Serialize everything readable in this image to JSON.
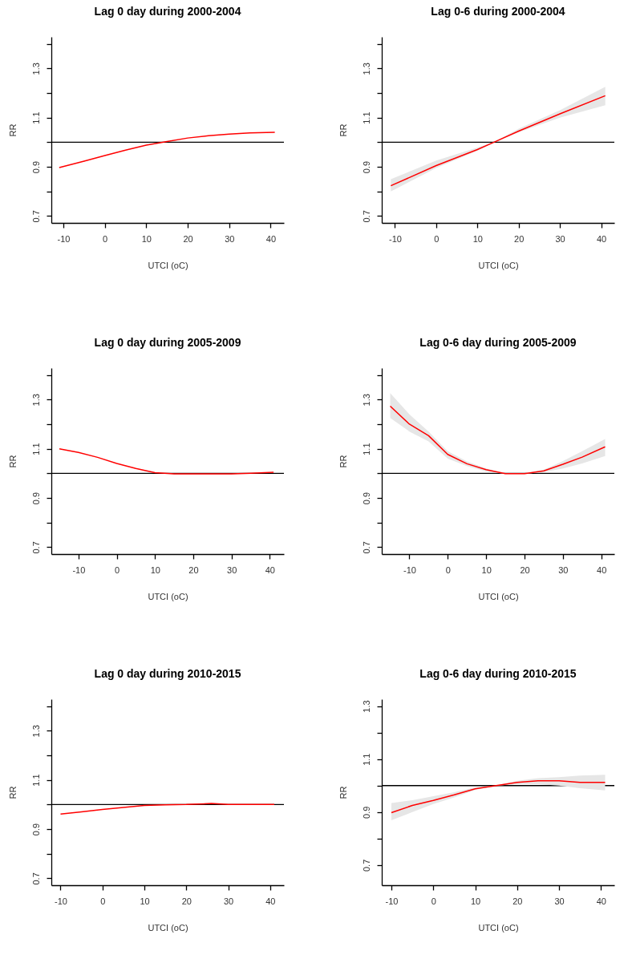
{
  "chart_data": [
    {
      "type": "line",
      "title": "Lag 0 day during 2000-2004",
      "xlabel": "UTCI (oC)",
      "ylabel": "RR",
      "xlim": [
        -12.9,
        43.2
      ],
      "xticks": [
        -10,
        0,
        10,
        20,
        30,
        40
      ],
      "ylim": [
        0.672,
        1.428
      ],
      "yticks": [
        0.7,
        {
          "value": 0.8,
          "label": null
        },
        0.9,
        {
          "value": 1.0,
          "label": null
        },
        1.1,
        {
          "value": 1.2,
          "label": null
        },
        1.3,
        {
          "value": 1.4,
          "label": null
        }
      ],
      "ref_lines": [
        {
          "axis": "y",
          "value": 1,
          "color": "#000000"
        }
      ],
      "series": [
        {
          "color": "#ff0000",
          "x": [
            -11,
            -5,
            0,
            5,
            10,
            15,
            20,
            25,
            30,
            35,
            41
          ],
          "values": [
            0.897,
            0.923,
            0.946,
            0.968,
            0.988,
            1.003,
            1.017,
            1.026,
            1.033,
            1.038,
            1.04
          ]
        }
      ]
    },
    {
      "type": "line",
      "title": "Lag 0-6 during 2000-2004",
      "xlabel": "UTCI (oC)",
      "ylabel": "RR",
      "xlim": [
        -13.2,
        43.2
      ],
      "xticks": [
        -10,
        0,
        10,
        20,
        30,
        40
      ],
      "ylim": [
        0.672,
        1.428
      ],
      "yticks": [
        0.7,
        {
          "value": 0.8,
          "label": null
        },
        0.9,
        {
          "value": 1.0,
          "label": null
        },
        1.1,
        {
          "value": 1.2,
          "label": null
        },
        1.3,
        {
          "value": 1.4,
          "label": null
        }
      ],
      "ref_lines": [
        {
          "axis": "y",
          "value": 1,
          "color": "#000000"
        }
      ],
      "series": [
        {
          "color": "#ff0000",
          "x": [
            -11,
            0,
            10,
            14,
            20,
            30,
            41
          ],
          "values": [
            0.823,
            0.905,
            0.97,
            1.0,
            1.045,
            1.115,
            1.189
          ],
          "lower": [
            0.8,
            0.895,
            0.965,
            1.0,
            1.04,
            1.1,
            1.15
          ],
          "upper": [
            0.85,
            0.925,
            0.978,
            1.0,
            1.055,
            1.13,
            1.225
          ]
        }
      ]
    },
    {
      "type": "line",
      "title": "Lag 0 day during 2005-2009",
      "xlabel": "UTCI (oC)",
      "ylabel": "RR",
      "xlim": [
        -17.1,
        43.7
      ],
      "xticks": [
        -10,
        0,
        10,
        20,
        30,
        40
      ],
      "ylim": [
        0.672,
        1.428
      ],
      "yticks": [
        0.7,
        {
          "value": 0.8,
          "label": null
        },
        0.9,
        {
          "value": 1.0,
          "label": null
        },
        1.1,
        {
          "value": 1.2,
          "label": null
        },
        1.3,
        {
          "value": 1.4,
          "label": null
        }
      ],
      "ref_lines": [
        {
          "axis": "y",
          "value": 1,
          "color": "#000000"
        }
      ],
      "series": [
        {
          "color": "#ff0000",
          "x": [
            -15,
            -10,
            -5,
            0,
            5,
            10,
            15,
            20,
            30,
            35,
            41
          ],
          "values": [
            1.1,
            1.085,
            1.065,
            1.04,
            1.02,
            1.003,
            0.998,
            0.998,
            0.998,
            1.0,
            1.004
          ]
        }
      ]
    },
    {
      "type": "line",
      "title": "Lag 0-6 day during 2005-2009",
      "xlabel": "UTCI (oC)",
      "ylabel": "RR",
      "xlim": [
        -17.2,
        43.4
      ],
      "xticks": [
        -10,
        0,
        10,
        20,
        30,
        40
      ],
      "ylim": [
        0.672,
        1.428
      ],
      "yticks": [
        0.7,
        {
          "value": 0.8,
          "label": null
        },
        0.9,
        {
          "value": 1.0,
          "label": null
        },
        1.1,
        {
          "value": 1.2,
          "label": null
        },
        1.3,
        {
          "value": 1.4,
          "label": null
        }
      ],
      "ref_lines": [
        {
          "axis": "y",
          "value": 1,
          "color": "#000000"
        }
      ],
      "series": [
        {
          "color": "#ff0000",
          "x": [
            -15,
            -10,
            -5,
            0,
            5,
            10,
            15,
            20,
            25,
            30,
            35,
            41
          ],
          "values": [
            1.273,
            1.2,
            1.153,
            1.077,
            1.039,
            1.015,
            0.999,
            0.999,
            1.01,
            1.037,
            1.066,
            1.108
          ],
          "lower": [
            1.225,
            1.17,
            1.13,
            1.06,
            1.03,
            1.008,
            0.998,
            0.998,
            1.005,
            1.02,
            1.04,
            1.07
          ],
          "upper": [
            1.326,
            1.24,
            1.17,
            1.09,
            1.048,
            1.02,
            1.0,
            1.0,
            1.015,
            1.05,
            1.09,
            1.14
          ]
        }
      ]
    },
    {
      "type": "line",
      "title": "Lag 0 day during 2010-2015",
      "xlabel": "UTCI (oC)",
      "ylabel": "RR",
      "xlim": [
        -12.2,
        43.3
      ],
      "xticks": [
        -10,
        0,
        10,
        20,
        30,
        40
      ],
      "ylim": [
        0.672,
        1.428
      ],
      "yticks": [
        0.7,
        {
          "value": 0.8,
          "label": null
        },
        0.9,
        {
          "value": 1.0,
          "label": null
        },
        1.1,
        {
          "value": 1.2,
          "label": null
        },
        1.3,
        {
          "value": 1.4,
          "label": null
        }
      ],
      "ref_lines": [
        {
          "axis": "y",
          "value": 1,
          "color": "#000000"
        }
      ],
      "series": [
        {
          "color": "#ff0000",
          "x": [
            -10,
            -5,
            0,
            5,
            10,
            15,
            20,
            26,
            30,
            35,
            41
          ],
          "values": [
            0.961,
            0.97,
            0.98,
            0.988,
            0.996,
            0.999,
            1.0,
            1.004,
            1.0,
            1.0,
            1.0
          ]
        }
      ]
    },
    {
      "type": "line",
      "title": "Lag 0-6 day during 2010-2015",
      "xlabel": "UTCI (oC)",
      "ylabel": "RR",
      "xlim": [
        -12.3,
        43.2
      ],
      "xticks": [
        -10,
        0,
        10,
        20,
        30,
        40
      ],
      "ylim": [
        0.624,
        1.326
      ],
      "yticks": [
        0.7,
        {
          "value": 0.8,
          "label": null
        },
        0.9,
        {
          "value": 1.0,
          "label": null
        },
        1.1,
        {
          "value": 1.2,
          "label": null
        },
        1.3
      ],
      "ref_lines": [
        {
          "axis": "y",
          "value": 1,
          "color": "#000000"
        }
      ],
      "series": [
        {
          "color": "#ff0000",
          "x": [
            -10,
            -5,
            0,
            5,
            10,
            15,
            20,
            25,
            30,
            35,
            41
          ],
          "values": [
            0.898,
            0.925,
            0.944,
            0.965,
            0.988,
            1.0,
            1.012,
            1.018,
            1.018,
            1.012,
            1.012
          ],
          "lower": [
            0.869,
            0.9,
            0.93,
            0.955,
            0.983,
            1.0,
            1.005,
            1.005,
            1.0,
            0.99,
            0.982
          ],
          "upper": [
            0.934,
            0.945,
            0.96,
            0.975,
            0.993,
            1.0,
            1.018,
            1.028,
            1.032,
            1.038,
            1.041
          ]
        }
      ]
    }
  ]
}
